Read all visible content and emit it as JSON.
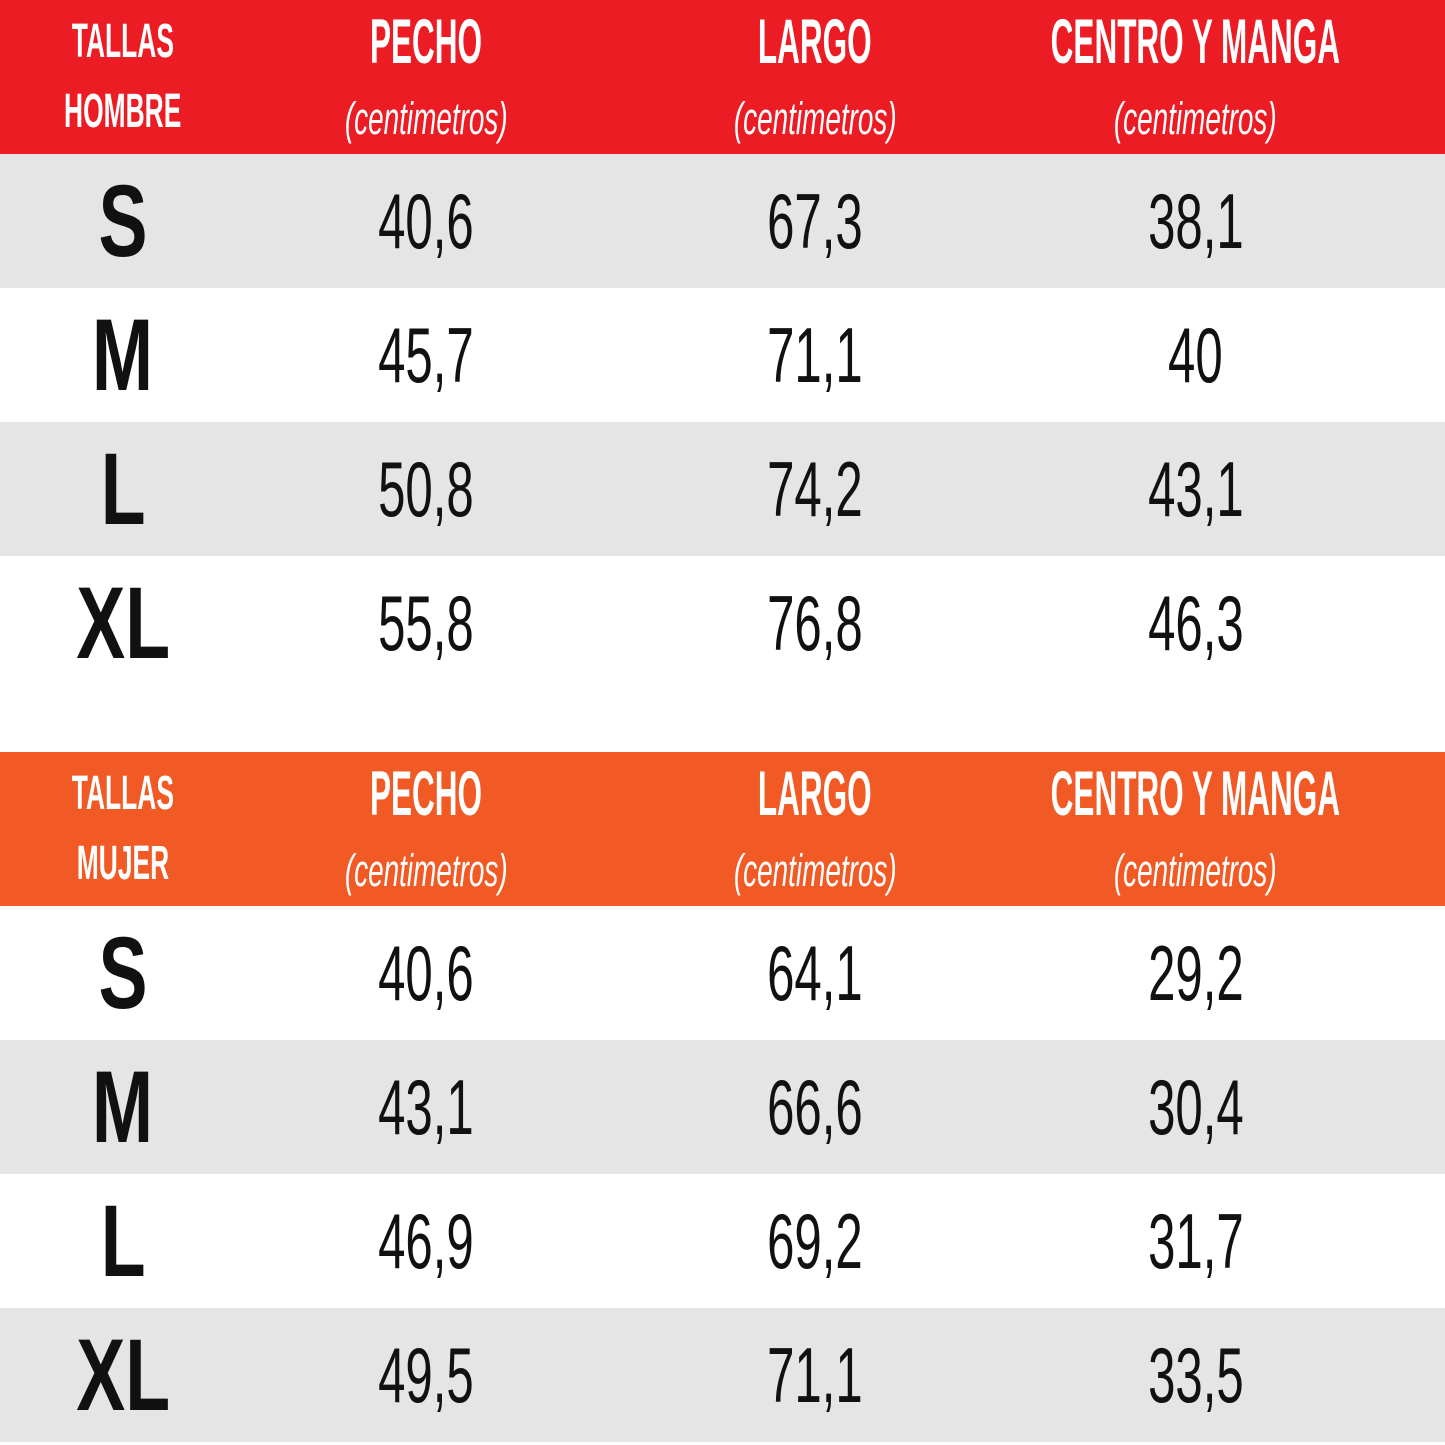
{
  "colors": {
    "men_header_bg": "#ec1c24",
    "women_header_bg": "#f15a25",
    "shaded_row_bg": "#e5e5e5",
    "plain_row_bg": "#ffffff",
    "header_text": "#ffffff",
    "body_text": "#111111"
  },
  "chart_data": [
    {
      "type": "table",
      "title": "TALLAS HOMBRE",
      "title_lines": [
        "TALLAS",
        "HOMBRE"
      ],
      "header_bg": "#ec1c24",
      "columns": [
        {
          "label": "PECHO",
          "unit": "(centimetros)"
        },
        {
          "label": "LARGO",
          "unit": "(centimetros)"
        },
        {
          "label": "CENTRO Y MANGA",
          "unit": "(centimetros)"
        }
      ],
      "rows": [
        {
          "size": "S",
          "values": [
            "40,6",
            "67,3",
            "38,1"
          ]
        },
        {
          "size": "M",
          "values": [
            "45,7",
            "71,1",
            "40"
          ]
        },
        {
          "size": "L",
          "values": [
            "50,8",
            "74,2",
            "43,1"
          ]
        },
        {
          "size": "XL",
          "values": [
            "55,8",
            "76,8",
            "46,3"
          ]
        }
      ],
      "shaded_rows": [
        "S",
        "L"
      ]
    },
    {
      "type": "table",
      "title": "TALLAS MUJER",
      "title_lines": [
        "TALLAS",
        "MUJER"
      ],
      "header_bg": "#f15a25",
      "columns": [
        {
          "label": "PECHO",
          "unit": "(centimetros)"
        },
        {
          "label": "LARGO",
          "unit": "(centimetros)"
        },
        {
          "label": "CENTRO Y MANGA",
          "unit": "(centimetros)"
        }
      ],
      "rows": [
        {
          "size": "S",
          "values": [
            "40,6",
            "64,1",
            "29,2"
          ]
        },
        {
          "size": "M",
          "values": [
            "43,1",
            "66,6",
            "30,4"
          ]
        },
        {
          "size": "L",
          "values": [
            "46,9",
            "69,2",
            "31,7"
          ]
        },
        {
          "size": "XL",
          "values": [
            "49,5",
            "71,1",
            "33,5"
          ]
        }
      ],
      "shaded_rows": [
        "M",
        "XL"
      ]
    }
  ]
}
